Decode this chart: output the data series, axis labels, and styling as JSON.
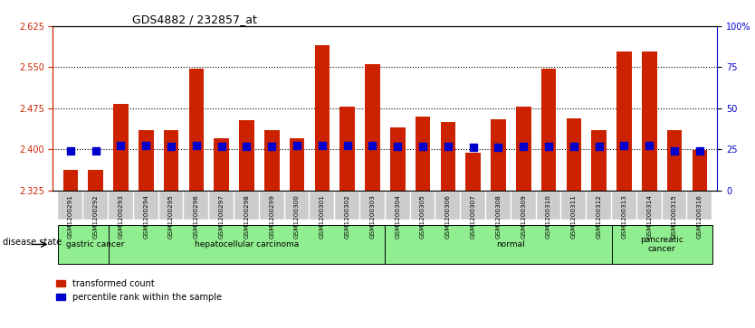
{
  "title": "GDS4882 / 232857_at",
  "samples": [
    "GSM1200291",
    "GSM1200292",
    "GSM1200293",
    "GSM1200294",
    "GSM1200295",
    "GSM1200296",
    "GSM1200297",
    "GSM1200298",
    "GSM1200299",
    "GSM1200300",
    "GSM1200301",
    "GSM1200302",
    "GSM1200303",
    "GSM1200304",
    "GSM1200305",
    "GSM1200306",
    "GSM1200307",
    "GSM1200308",
    "GSM1200309",
    "GSM1200310",
    "GSM1200311",
    "GSM1200312",
    "GSM1200313",
    "GSM1200314",
    "GSM1200315",
    "GSM1200316"
  ],
  "transformed_count": [
    2.363,
    2.362,
    2.483,
    2.435,
    2.435,
    2.548,
    2.42,
    2.453,
    2.435,
    2.42,
    2.59,
    2.478,
    2.555,
    2.44,
    2.46,
    2.45,
    2.393,
    2.455,
    2.478,
    2.548,
    2.457,
    2.435,
    2.578,
    2.578,
    2.435,
    2.398
  ],
  "percentile_rank": [
    2.397,
    2.397,
    2.407,
    2.407,
    2.405,
    2.407,
    2.405,
    2.405,
    2.405,
    2.407,
    2.407,
    2.407,
    2.407,
    2.405,
    2.405,
    2.405,
    2.403,
    2.403,
    2.405,
    2.405,
    2.405,
    2.405,
    2.407,
    2.407,
    2.397,
    2.397
  ],
  "ylim_left": [
    2.325,
    2.625
  ],
  "yticks_left": [
    2.325,
    2.4,
    2.475,
    2.55,
    2.625
  ],
  "ylim_right": [
    0,
    100
  ],
  "yticks_right": [
    0,
    25,
    50,
    75,
    100
  ],
  "ytick_labels_right": [
    "0",
    "25",
    "50",
    "75",
    "100%"
  ],
  "baseline": 2.325,
  "bar_color": "#CC2200",
  "dot_color": "#0000CC",
  "disease_groups": [
    {
      "label": "gastric cancer",
      "start": 0,
      "end": 2
    },
    {
      "label": "hepatocellular carcinoma",
      "start": 2,
      "end": 12
    },
    {
      "label": "normal",
      "start": 13,
      "end": 22
    },
    {
      "label": "pancreatic\ncancer",
      "start": 22,
      "end": 25
    }
  ],
  "group_bg_color": "#90EE90",
  "group_border_color": "#000000",
  "tick_bg_color": "#D3D3D3",
  "grid_color": "#000000",
  "left_axis_color": "#CC2200",
  "right_axis_color": "#0000CC",
  "disease_label": "disease state",
  "legend_items": [
    {
      "color": "#CC2200",
      "marker": "s",
      "label": "transformed count"
    },
    {
      "color": "#0000CC",
      "marker": "s",
      "label": "percentile rank within the sample"
    }
  ]
}
